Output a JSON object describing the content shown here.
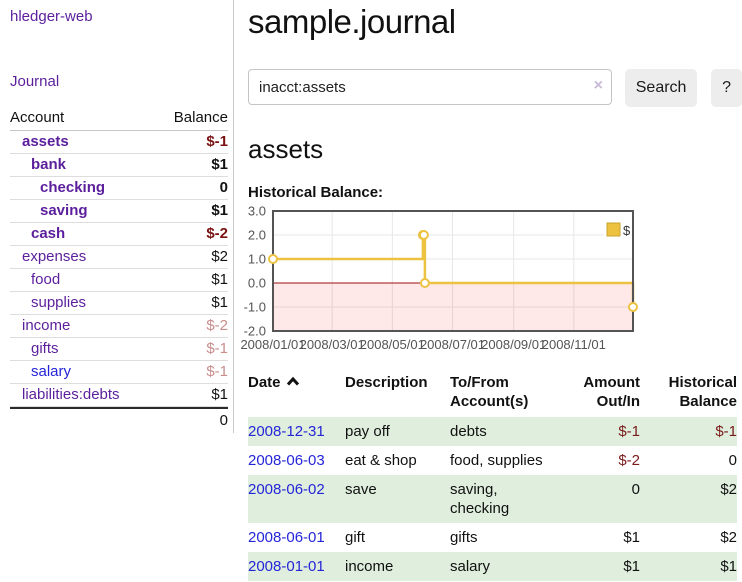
{
  "app": {
    "title": "hledger-web"
  },
  "sidebar": {
    "nav_journal": "Journal",
    "accounts_table": {
      "headers": {
        "account": "Account",
        "balance": "Balance"
      },
      "rows": [
        {
          "account": "assets",
          "balance": "$-1"
        },
        {
          "account": "bank",
          "balance": "$1"
        },
        {
          "account": "checking",
          "balance": "0"
        },
        {
          "account": "saving",
          "balance": "$1"
        },
        {
          "account": "cash",
          "balance": "$-2"
        },
        {
          "account": "expenses",
          "balance": "$2"
        },
        {
          "account": "food",
          "balance": "$1"
        },
        {
          "account": "supplies",
          "balance": "$1"
        },
        {
          "account": "income",
          "balance": "$-2"
        },
        {
          "account": "gifts",
          "balance": "$-1"
        },
        {
          "account": "salary",
          "balance": "$-1"
        },
        {
          "account": "liabilities:debts",
          "balance": "$1"
        }
      ],
      "total": "0"
    }
  },
  "main": {
    "title": "sample.journal",
    "search": {
      "value": "inacct:assets",
      "clear_label": "×",
      "button_label": "Search",
      "help_label": "?"
    },
    "account_heading": "assets",
    "chart_heading": "Historical Balance:"
  },
  "chart_data": {
    "type": "line",
    "step": true,
    "title": "Historical Balance:",
    "series": [
      {
        "name": "$",
        "color": "#edc240",
        "points": [
          [
            "2008-01-01",
            1
          ],
          [
            "2008-06-01",
            2
          ],
          [
            "2008-06-02",
            2
          ],
          [
            "2008-06-03",
            0
          ],
          [
            "2008-12-31",
            -1
          ]
        ]
      }
    ],
    "x_range": [
      "2008-01-01",
      "2008-12-31"
    ],
    "ylim": [
      -2,
      3
    ],
    "yticks": [
      3.0,
      2.0,
      1.0,
      0.0,
      -1.0,
      -2.0
    ],
    "xticks": [
      "2008/01/01",
      "2008/03/01",
      "2008/05/01",
      "2008/07/01",
      "2008/09/01",
      "2008/11/01"
    ],
    "grid": true,
    "zero_line_color": "#991111",
    "negative_region_fill": "rgba(255,0,0,0.09)",
    "legend": {
      "label": "$",
      "position": "top-right"
    }
  },
  "register": {
    "headers": {
      "date": "Date",
      "description": "Description",
      "accounts": "To/From Account(s)",
      "amount": "Amount Out/In",
      "balance": "Historical Balance"
    },
    "rows": [
      {
        "date": "2008-12-31",
        "description": "pay off",
        "accounts": "debts",
        "amount": "$-1",
        "balance": "$-1"
      },
      {
        "date": "2008-06-03",
        "description": "eat & shop",
        "accounts": "food, supplies",
        "amount": "$-2",
        "balance": "0"
      },
      {
        "date": "2008-06-02",
        "description": "save",
        "accounts": "saving, checking",
        "amount": "0",
        "balance": "$2"
      },
      {
        "date": "2008-06-01",
        "description": "gift",
        "accounts": "gifts",
        "amount": "$1",
        "balance": "$2"
      },
      {
        "date": "2008-01-01",
        "description": "income",
        "accounts": "salary",
        "amount": "$1",
        "balance": "$1"
      }
    ]
  },
  "colors": {
    "link_purple": "#5b1f9c",
    "link_blue": "#2525d8",
    "negative_strong": "#7a1212",
    "negative_muted": "#c98d8d",
    "row_green": "#dfeedd",
    "series_gold": "#edc240",
    "zero_line": "#991111",
    "chart_border": "#545454"
  }
}
